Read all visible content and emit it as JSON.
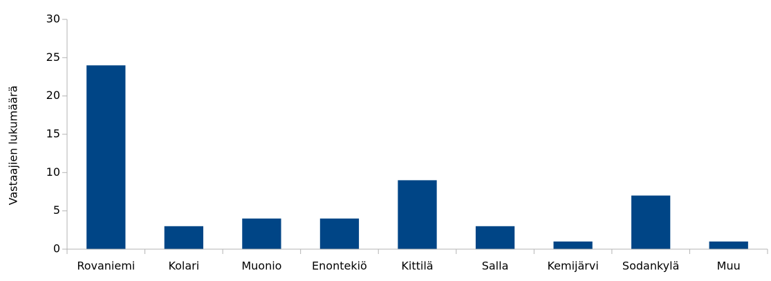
{
  "chart_data": {
    "type": "bar",
    "y_label": "Vastaajien lukumäärä",
    "categories": [
      "Rovaniemi",
      "Kolari",
      "Muonio",
      "Enontekiö",
      "Kittilä",
      "Salla",
      "Kemijärvi",
      "Sodankylä",
      "Muu"
    ],
    "values": [
      24,
      3,
      4,
      4,
      9,
      3,
      1,
      7,
      1
    ],
    "color": "#004586",
    "ylim": [
      0,
      30
    ],
    "yticks": [
      0,
      5,
      10,
      15,
      20,
      25,
      30
    ],
    "grid": false
  }
}
